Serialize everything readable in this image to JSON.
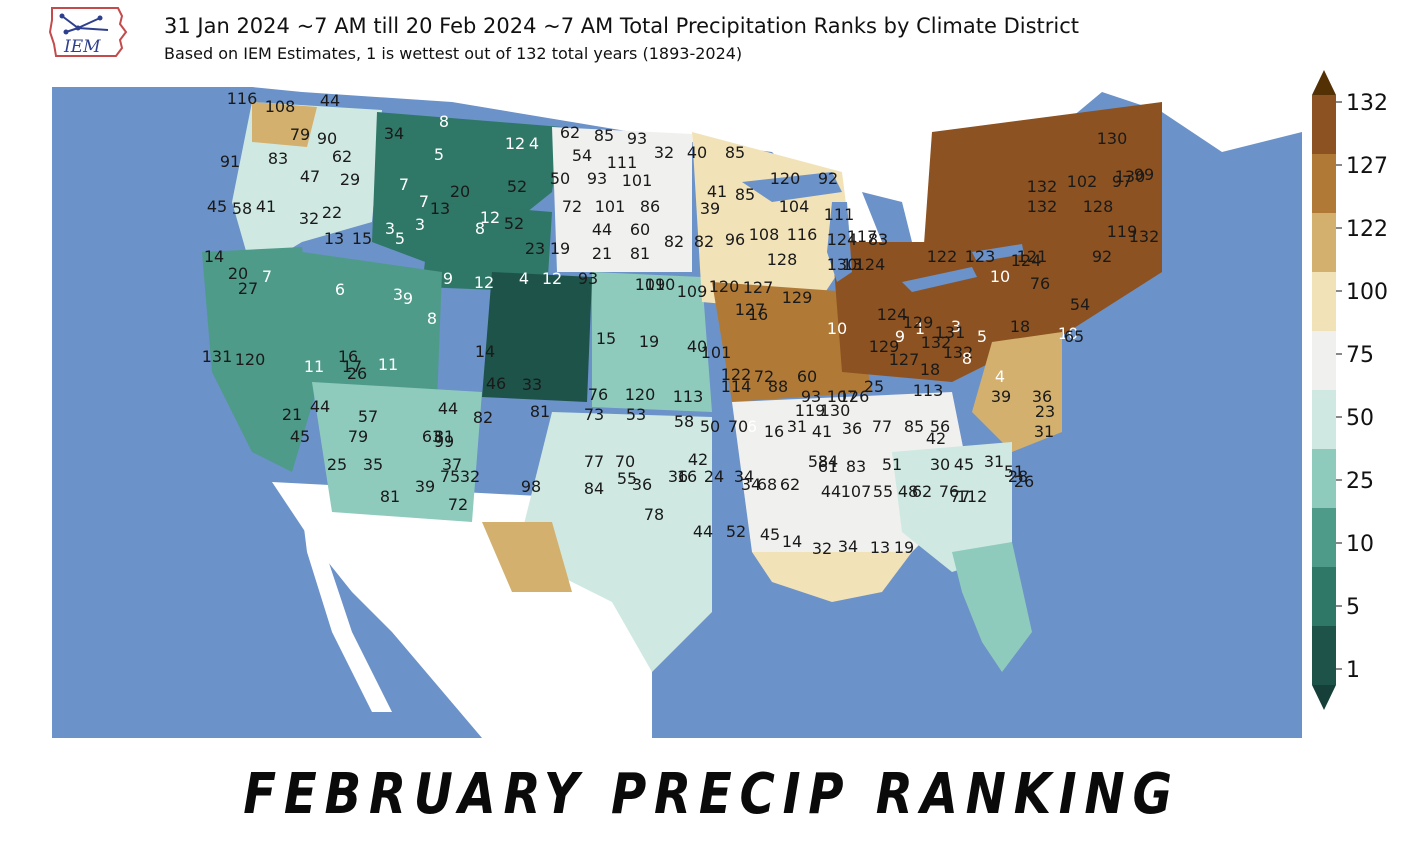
{
  "logo": {
    "text": "IEM"
  },
  "header": {
    "title": "31 Jan 2024 ~7 AM till 20 Feb 2024 ~7 AM Total Precipitation Ranks by Climate District",
    "subtitle": "Based on IEM Estimates, 1 is wettest out of 132 total years (1893-2024)"
  },
  "caption": "FEBRUARY PRECIP RANKING",
  "legend": {
    "ticks": [
      "132",
      "127",
      "122",
      "100",
      "75",
      "50",
      "25",
      "10",
      "5",
      "1"
    ],
    "colors": [
      "#8c5221",
      "#b07a36",
      "#d3b06d",
      "#f2e2b8",
      "#f0f0ee",
      "#cfe9e2",
      "#8fcbbd",
      "#4f9b8a",
      "#2f7767",
      "#1d5349"
    ],
    "top_color": "#543005",
    "bottom_color": "#153f38"
  },
  "colors": {
    "ocean": "#6b92c9",
    "land_outside": "#ffffff",
    "lakes": "#6b92c9"
  },
  "chart_data": {
    "type": "choropleth",
    "color_bins": [
      {
        "range": "1-5",
        "color": "#1d5349"
      },
      {
        "range": "5-10",
        "color": "#2f7767"
      },
      {
        "range": "10-25",
        "color": "#4f9b8a"
      },
      {
        "range": "25-50",
        "color": "#8fcbbd"
      },
      {
        "range": "50-75",
        "color": "#cfe9e2"
      },
      {
        "range": "75-100",
        "color": "#f0f0ee"
      },
      {
        "range": "100-122",
        "color": "#f2e2b8"
      },
      {
        "range": "122-127",
        "color": "#d3b06d"
      },
      {
        "range": "127-132",
        "color": "#b07a36"
      },
      {
        "range": "132",
        "color": "#8c5221"
      }
    ],
    "district_ranks": [
      116,
      108,
      44,
      79,
      90,
      62,
      91,
      83,
      47,
      29,
      45,
      58,
      41,
      32,
      22,
      13,
      15,
      3,
      5,
      34,
      8,
      5,
      7,
      7,
      13,
      20,
      12,
      4,
      62,
      85,
      93,
      54,
      111,
      50,
      93,
      101,
      72,
      101,
      86,
      32,
      40,
      85,
      41,
      39,
      85,
      120,
      92,
      104,
      111,
      12,
      52,
      3,
      8,
      52,
      23,
      19,
      44,
      60,
      21,
      81,
      82,
      82,
      96,
      108,
      116,
      124,
      83,
      128,
      130,
      13,
      14,
      20,
      27,
      7,
      6,
      3,
      9,
      8,
      9,
      12,
      4,
      12,
      93,
      109,
      110,
      109,
      120,
      127,
      129,
      127,
      16,
      10,
      9,
      1,
      3,
      5,
      18,
      10,
      76,
      54,
      10,
      65,
      121,
      123,
      122,
      124,
      117,
      124,
      129,
      131,
      132,
      132,
      129,
      127,
      124,
      92,
      132,
      102,
      97,
      99,
      130,
      128,
      119,
      132,
      130,
      132,
      131,
      120,
      16,
      11,
      11,
      17,
      14,
      15,
      19,
      40,
      101,
      122,
      72,
      60,
      93,
      107,
      25,
      18,
      8,
      4,
      26,
      46,
      33,
      76,
      120,
      113,
      114,
      88,
      119,
      130,
      126,
      113,
      39,
      36,
      23,
      31,
      21,
      44,
      57,
      44,
      82,
      81,
      73,
      53,
      58,
      50,
      70,
      6,
      16,
      31,
      41,
      36,
      77,
      85,
      56,
      42,
      45,
      79,
      63,
      81,
      99,
      77,
      70,
      42,
      16,
      24,
      34,
      58,
      34,
      61,
      83,
      51,
      30,
      45,
      31,
      51,
      28,
      26,
      25,
      35,
      37,
      39,
      75,
      32,
      55,
      36,
      36,
      34,
      68,
      62,
      44,
      107,
      55,
      48,
      62,
      76,
      77,
      112,
      81,
      72,
      98,
      84,
      78,
      44,
      52,
      45,
      14,
      32,
      34,
      13,
      19
    ]
  }
}
